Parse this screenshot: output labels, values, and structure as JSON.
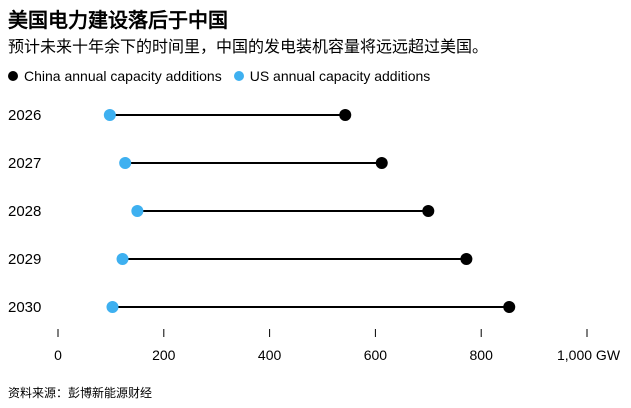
{
  "chart_data": {
    "type": "dumbbell",
    "title": "美国电力建设落后于中国",
    "subtitle": "预计未来十年余下的时间里，中国的发电装机容量将远远超过美国。",
    "categories": [
      "2026",
      "2027",
      "2028",
      "2029",
      "2030"
    ],
    "series": [
      {
        "name": "China annual capacity additions",
        "color": "#000000",
        "values": [
          543,
          612,
          700,
          772,
          853
        ]
      },
      {
        "name": "US annual capacity additions",
        "color": "#3eb0f0",
        "values": [
          98,
          127,
          150,
          122,
          103
        ]
      }
    ],
    "xlim": [
      0,
      1000
    ],
    "xticks": [
      0,
      200,
      400,
      600,
      800,
      1000
    ],
    "xtick_labels": [
      "0",
      "200",
      "400",
      "600",
      "800",
      "1,000 GW"
    ],
    "source": "资料来源：彭博新能源财经"
  }
}
